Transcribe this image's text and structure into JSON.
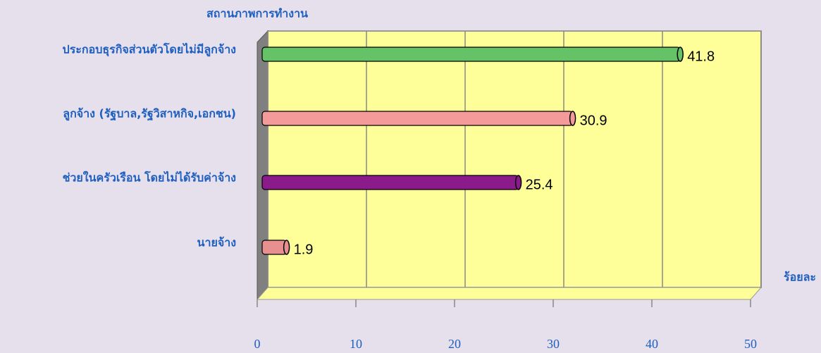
{
  "chart_data": {
    "type": "bar",
    "orientation": "horizontal",
    "y_axis_label": "สถานภาพการทำงาน",
    "x_axis_label": "ร้อยละ",
    "categories": [
      "ประกอบธุรกิจส่วนตัวโดยไม่มีลูกจ้าง",
      "ลูกจ้าง (รัฐบาล,รัฐวิสาหกิจ,เอกชน)",
      "ช่วยในครัวเรือน โดยไม่ได้รับค่าจ้าง",
      "นายจ้าง"
    ],
    "values": [
      41.8,
      30.9,
      25.4,
      1.9
    ],
    "colors": [
      "#66c266",
      "#f49a9a",
      "#8b1a8b",
      "#e89090"
    ],
    "xlim": [
      0,
      50
    ],
    "xticks": [
      0,
      10,
      20,
      30,
      40,
      50
    ],
    "grid": true
  }
}
